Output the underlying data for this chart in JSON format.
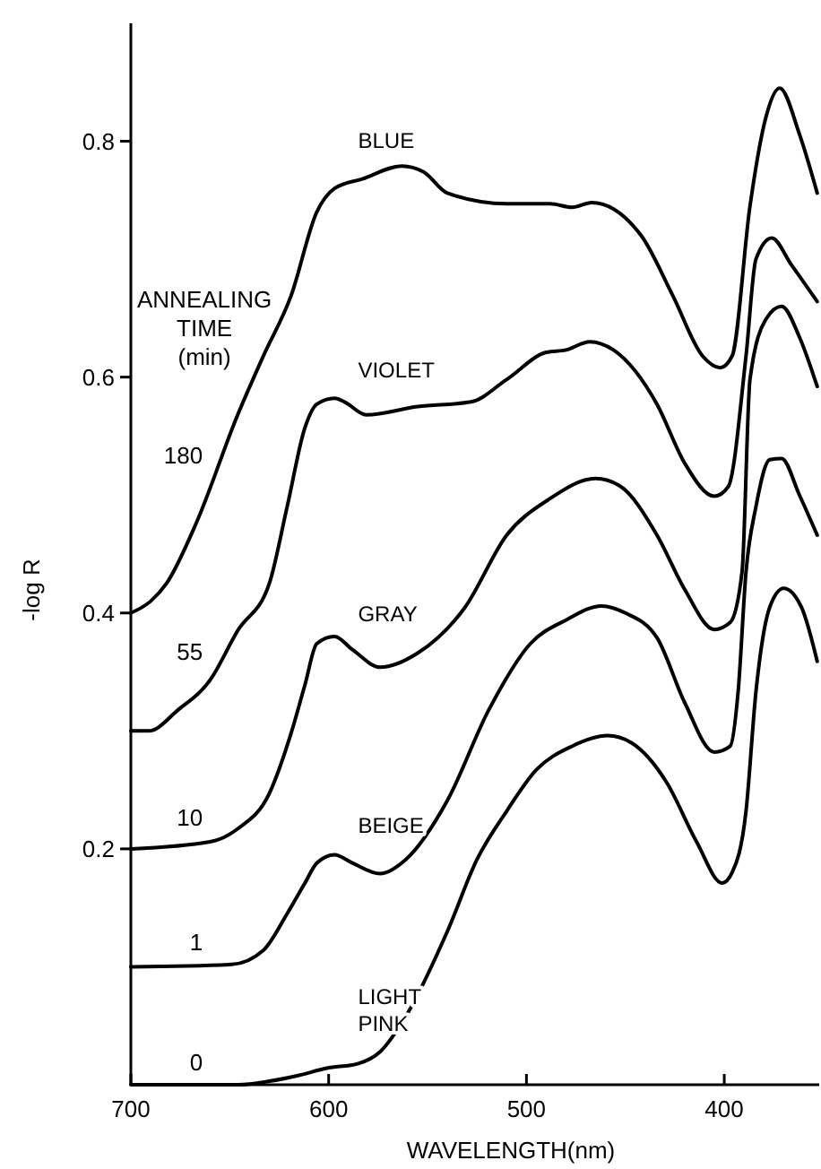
{
  "chart_data": {
    "type": "line",
    "xlabel": "WAVELENGTH(nm)",
    "ylabel": "-log R",
    "legend_title": "ANNEALING\nTIME\n(min)",
    "legend": false,
    "marker": "none",
    "line_style": "solid",
    "grid": false,
    "xlim": [
      700,
      352
    ],
    "ylim": [
      0,
      0.9
    ],
    "xticks": [
      700,
      600,
      500,
      400
    ],
    "yticks": [
      0.2,
      0.4,
      0.6,
      0.8
    ],
    "series": [
      {
        "name": "180",
        "color": "#000000",
        "x": [
          700,
          690,
          682,
          667,
          646,
          633,
          619,
          606,
          597,
          583,
          563,
          552,
          540,
          510,
          488,
          477,
          467,
          442,
          426,
          411,
          402,
          396,
          387,
          379,
          372,
          362,
          353
        ],
        "values": [
          0.4,
          0.41,
          0.425,
          0.476,
          0.568,
          0.618,
          0.669,
          0.74,
          0.76,
          0.768,
          0.779,
          0.774,
          0.756,
          0.747,
          0.747,
          0.744,
          0.748,
          0.72,
          0.669,
          0.618,
          0.608,
          0.618,
          0.745,
          0.82,
          0.845,
          0.806,
          0.756
        ]
      },
      {
        "name": "55",
        "color": "#000000",
        "x": [
          700,
          691,
          676,
          660,
          646,
          630,
          621,
          612,
          606,
          597,
          592,
          581,
          555,
          528,
          510,
          490,
          480,
          468,
          456,
          434,
          420,
          405,
          398,
          389,
          384,
          376,
          366,
          353
        ],
        "values": [
          0.3,
          0.3,
          0.318,
          0.343,
          0.385,
          0.425,
          0.49,
          0.557,
          0.577,
          0.582,
          0.579,
          0.568,
          0.575,
          0.579,
          0.598,
          0.621,
          0.623,
          0.63,
          0.623,
          0.577,
          0.527,
          0.499,
          0.507,
          0.618,
          0.7,
          0.718,
          0.695,
          0.664
        ]
      },
      {
        "name": "10",
        "color": "#000000",
        "x": [
          700,
          660,
          646,
          630,
          619,
          612,
          606,
          597,
          588,
          574,
          555,
          531,
          510,
          489,
          465,
          453,
          434,
          420,
          405,
          397,
          391,
          387,
          379,
          371,
          362,
          353
        ],
        "values": [
          0.2,
          0.206,
          0.217,
          0.247,
          0.298,
          0.339,
          0.374,
          0.38,
          0.369,
          0.354,
          0.366,
          0.405,
          0.466,
          0.496,
          0.514,
          0.508,
          0.466,
          0.42,
          0.386,
          0.392,
          0.435,
          0.598,
          0.649,
          0.66,
          0.634,
          0.592
        ]
      },
      {
        "name": "1",
        "color": "#000000",
        "x": [
          700,
          649,
          633,
          621,
          612,
          606,
          597,
          588,
          574,
          561,
          540,
          519,
          498,
          480,
          462,
          450,
          434,
          420,
          405,
          397,
          393,
          389,
          384,
          377,
          371,
          362,
          353
        ],
        "values": [
          0.1,
          0.102,
          0.114,
          0.145,
          0.171,
          0.188,
          0.195,
          0.188,
          0.179,
          0.191,
          0.241,
          0.318,
          0.374,
          0.394,
          0.406,
          0.4,
          0.379,
          0.324,
          0.282,
          0.287,
          0.333,
          0.435,
          0.49,
          0.53,
          0.531,
          0.5,
          0.466
        ]
      },
      {
        "name": "0",
        "color": "#000000",
        "x": [
          700,
          646,
          630,
          615,
          601,
          585,
          574,
          561,
          540,
          525,
          510,
          495,
          477,
          459,
          447,
          429,
          414,
          401,
          396,
          389,
          384,
          377,
          370,
          361,
          353
        ],
        "values": [
          0,
          0,
          0.003,
          0.008,
          0.014,
          0.018,
          0.028,
          0.058,
          0.13,
          0.191,
          0.232,
          0.267,
          0.287,
          0.296,
          0.29,
          0.256,
          0.206,
          0.171,
          0.18,
          0.232,
          0.333,
          0.405,
          0.421,
          0.405,
          0.359
        ]
      }
    ],
    "annotations": [
      "BLUE",
      "VIOLET",
      "GRAY",
      "BEIGE",
      "LIGHT\nPINK"
    ]
  }
}
